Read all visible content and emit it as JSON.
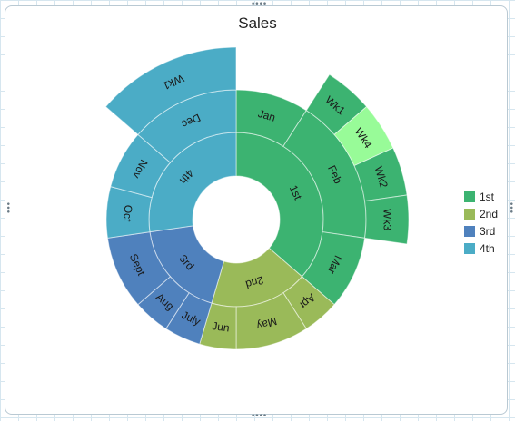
{
  "chart_data": {
    "type": "sunburst",
    "title": "Sales",
    "legend_position": "right",
    "series": [
      {
        "name": "1st",
        "color": "#3cb371",
        "value": 4,
        "months": [
          {
            "name": "Jan",
            "value": 1,
            "weeks": []
          },
          {
            "name": "Feb",
            "value": 2,
            "weeks": [
              {
                "name": "Wk1",
                "value": 0.5,
                "color": "#3cb371"
              },
              {
                "name": "Wk4",
                "value": 0.5,
                "color": "#98fb98"
              },
              {
                "name": "Wk2",
                "value": 0.5,
                "color": "#3cb371"
              },
              {
                "name": "Wk3",
                "value": 0.5,
                "color": "#3cb371"
              }
            ]
          },
          {
            "name": "Mar",
            "value": 1,
            "weeks": []
          }
        ]
      },
      {
        "name": "2nd",
        "color": "#9aba59",
        "value": 2,
        "months": [
          {
            "name": "Apr",
            "value": 0.5,
            "weeks": []
          },
          {
            "name": "May",
            "value": 1,
            "weeks": []
          },
          {
            "name": "Jun",
            "value": 0.5,
            "weeks": []
          }
        ]
      },
      {
        "name": "3rd",
        "color": "#4f81bd",
        "value": 2,
        "months": [
          {
            "name": "July",
            "value": 0.5,
            "weeks": []
          },
          {
            "name": "Aug",
            "value": 0.5,
            "weeks": []
          },
          {
            "name": "Sept",
            "value": 1,
            "weeks": []
          }
        ]
      },
      {
        "name": "4th",
        "color": "#4bacc6",
        "value": 3,
        "months": [
          {
            "name": "Oct",
            "value": 0.7,
            "weeks": []
          },
          {
            "name": "Nov",
            "value": 0.8,
            "weeks": []
          },
          {
            "name": "Dec",
            "value": 1.5,
            "weeks": [
              {
                "name": "Wk1",
                "value": 1.5,
                "color": "#4bacc6"
              }
            ]
          }
        ]
      }
    ]
  }
}
